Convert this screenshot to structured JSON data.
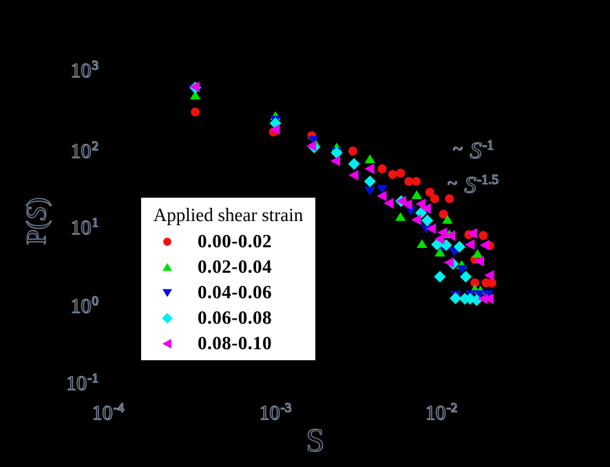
{
  "colors": {
    "background": "#000000",
    "legend_bg": "#ffffff",
    "legend_text": "#000000",
    "tick_outline": "#8293aa",
    "red": "#f01111",
    "green": "#00e100",
    "blue": "#0011dd",
    "cyan": "#00eeee",
    "magenta": "#ee00ee"
  },
  "figure": {
    "y_axis_label": {
      "pre": "P(",
      "sym": "S",
      "post": ")"
    },
    "x_axis_label": {
      "sym": "S"
    },
    "annotations": [
      {
        "tilde": "~",
        "sym": "S",
        "exponent": "-1"
      },
      {
        "tilde": "~",
        "sym": "S",
        "exponent": "-1.5"
      }
    ]
  },
  "axes": {
    "y_ticks": [
      {
        "base": "10",
        "exp": "3"
      },
      {
        "base": "10",
        "exp": "2"
      },
      {
        "base": "10",
        "exp": "1"
      },
      {
        "base": "10",
        "exp": "0"
      },
      {
        "base": "10",
        "exp": "-1"
      }
    ],
    "x_ticks": [
      {
        "base": "10",
        "exp": "-4"
      },
      {
        "base": "10",
        "exp": "-3"
      },
      {
        "base": "10",
        "exp": "-2"
      }
    ]
  },
  "legend": {
    "title": "Applied shear strain",
    "items": [
      {
        "label": "0.00-0.02",
        "marker": "circle",
        "color": "#f01111"
      },
      {
        "label": "0.02-0.04",
        "marker": "triangle-up",
        "color": "#00e100"
      },
      {
        "label": "0.04-0.06",
        "marker": "triangle-down",
        "color": "#0011dd"
      },
      {
        "label": "0.06-0.08",
        "marker": "diamond",
        "color": "#00eeee"
      },
      {
        "label": "0.08-0.10",
        "marker": "triangle-left",
        "color": "#ee00ee"
      }
    ]
  },
  "chart_data": {
    "type": "scatter",
    "title": "",
    "xlabel": "S",
    "ylabel": "P(S)",
    "x_scale": "log",
    "y_scale": "log",
    "xlim": [
      5e-05,
      0.05
    ],
    "ylim": [
      0.1,
      2000
    ],
    "grid": false,
    "legend_position": "lower-left",
    "annotations": [
      "~ S^-1",
      "~ S^-1.5"
    ],
    "series": [
      {
        "name": "0.00-0.02",
        "marker": "circle",
        "color": "#f01111",
        "points": [
          [
            0.00034,
            310
          ],
          [
            0.001,
            172
          ],
          [
            0.0017,
            154
          ],
          [
            0.003,
            98
          ],
          [
            0.0045,
            58
          ],
          [
            0.0052,
            49
          ],
          [
            0.0058,
            51
          ],
          [
            0.0065,
            40
          ],
          [
            0.0072,
            40
          ],
          [
            0.0087,
            29
          ],
          [
            0.0093,
            24
          ],
          [
            0.0114,
            24
          ],
          [
            0.0105,
            15.2
          ],
          [
            0.0149,
            8.3
          ],
          [
            0.0182,
            8.1
          ],
          [
            0.0199,
            6.0
          ],
          [
            0.0162,
            4.0
          ],
          [
            0.0162,
            2.0
          ],
          [
            0.0189,
            2.0
          ],
          [
            0.0205,
            2.0
          ]
        ]
      },
      {
        "name": "0.02-0.04",
        "marker": "triangle-up",
        "color": "#00e100",
        "points": [
          [
            0.00034,
            505
          ],
          [
            0.00103,
            275
          ],
          [
            0.00178,
            124
          ],
          [
            0.0024,
            109
          ],
          [
            0.0038,
            77
          ],
          [
            0.00725,
            26.8
          ],
          [
            0.0058,
            14.0
          ],
          [
            0.0111,
            12.9
          ],
          [
            0.0114,
            8.4
          ],
          [
            0.0078,
            6.3
          ],
          [
            0.01,
            4.9
          ],
          [
            0.0135,
            3.4
          ],
          [
            0.0168,
            4.7
          ],
          [
            0.0162,
            1.66
          ],
          [
            0.0175,
            1.6
          ]
        ]
      },
      {
        "name": "0.04-0.06",
        "marker": "triangle-down",
        "color": "#0011dd",
        "points": [
          [
            0.000333,
            620
          ],
          [
            0.00103,
            246
          ],
          [
            0.00174,
            136
          ],
          [
            0.0024,
            97
          ],
          [
            0.0031,
            64
          ],
          [
            0.0045,
            32
          ],
          [
            0.0038,
            30.3
          ],
          [
            0.0067,
            16.8
          ],
          [
            0.0083,
            9.9
          ],
          [
            0.0104,
            5.8
          ],
          [
            0.0122,
            5.0
          ],
          [
            0.0136,
            3.0
          ],
          [
            0.0125,
            1.4
          ],
          [
            0.0153,
            1.43
          ],
          [
            0.0173,
            1.43
          ],
          [
            0.0194,
            1.43
          ]
        ]
      },
      {
        "name": "0.06-0.08",
        "marker": "diamond",
        "color": "#00eeee",
        "points": [
          [
            0.00034,
            636
          ],
          [
            0.00103,
            222
          ],
          [
            0.00176,
            109
          ],
          [
            0.0024,
            93
          ],
          [
            0.00305,
            67
          ],
          [
            0.0038,
            40
          ],
          [
            0.00585,
            22.3
          ],
          [
            0.0077,
            15.8
          ],
          [
            0.0084,
            12.6
          ],
          [
            0.0096,
            6.2
          ],
          [
            0.0109,
            6.1
          ],
          [
            0.0131,
            5.8
          ],
          [
            0.012,
            3.5
          ],
          [
            0.01,
            2.4
          ],
          [
            0.0143,
            2.4
          ],
          [
            0.0124,
            1.27
          ],
          [
            0.0141,
            1.25
          ],
          [
            0.0152,
            1.25
          ],
          [
            0.0166,
            1.2
          ]
        ]
      },
      {
        "name": "0.08-0.10",
        "marker": "triangle-left",
        "color": "#ee00ee",
        "points": [
          [
            0.00034,
            650
          ],
          [
            0.00103,
            185
          ],
          [
            0.0017,
            114
          ],
          [
            0.00237,
            73
          ],
          [
            0.00305,
            48
          ],
          [
            0.0038,
            58
          ],
          [
            0.0045,
            26
          ],
          [
            0.00495,
            21
          ],
          [
            0.0059,
            22.3
          ],
          [
            0.0064,
            20.2
          ],
          [
            0.0077,
            20.6
          ],
          [
            0.0083,
            17.9
          ],
          [
            0.00725,
            12.9
          ],
          [
            0.0089,
            9.9
          ],
          [
            0.0104,
            8.8
          ],
          [
            0.0116,
            8.1
          ],
          [
            0.01,
            7.3
          ],
          [
            0.0157,
            8.6
          ],
          [
            0.0187,
            6.1
          ],
          [
            0.0152,
            6.2
          ],
          [
            0.0114,
            3.65
          ],
          [
            0.0173,
            3.8
          ],
          [
            0.0199,
            2.5
          ],
          [
            0.0182,
            1.25
          ],
          [
            0.0197,
            1.25
          ]
        ]
      }
    ]
  }
}
